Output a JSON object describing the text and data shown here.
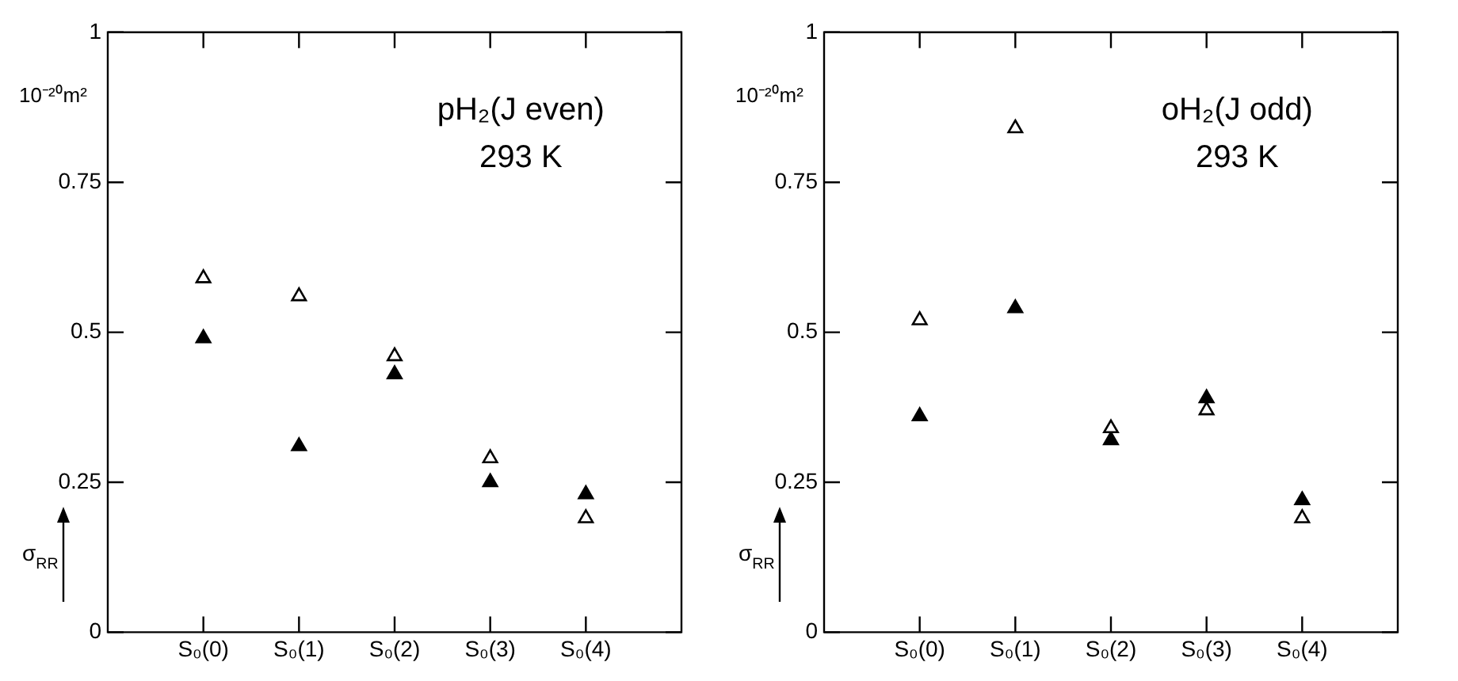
{
  "chart_data": [
    {
      "type": "scatter",
      "categories": [
        "S₀(0)",
        "S₀(1)",
        "S₀(2)",
        "S₀(3)",
        "S₀(4)"
      ],
      "ylabel": "σ$_{RR}$",
      "annotations": [
        "10⁻²⁰m²",
        "pH₂(J even)",
        "293 K"
      ],
      "ylim": [
        0,
        1
      ],
      "yticks": [
        0,
        0.25,
        0.5,
        0.75,
        1
      ],
      "marker": "triangle",
      "grid": false,
      "legend": false,
      "series": [
        {
          "color": "#000000",
          "values": [
            0.59,
            0.56,
            0.46,
            0.29,
            0.19
          ]
        },
        {
          "color": "#000000",
          "values": [
            0.49,
            0.31,
            0.43,
            0.25,
            0.23
          ]
        }
      ]
    },
    {
      "type": "scatter",
      "categories": [
        "S₀(0)",
        "S₀(1)",
        "S₀(2)",
        "S₀(3)",
        "S₀(4)"
      ],
      "ylabel": "σ$_{RR}$",
      "annotations": [
        "10⁻²⁰m²",
        "oH₂(J odd)",
        "293 K"
      ],
      "ylim": [
        0,
        1
      ],
      "yticks": [
        0,
        0.25,
        0.5,
        0.75,
        1
      ],
      "marker": "triangle",
      "grid": false,
      "legend": false,
      "series": [
        {
          "color": "#000000",
          "values": [
            0.52,
            0.84,
            0.34,
            0.37,
            0.19
          ]
        },
        {
          "color": "#000000",
          "values": [
            0.36,
            0.54,
            0.32,
            0.39,
            0.22
          ]
        }
      ]
    }
  ]
}
